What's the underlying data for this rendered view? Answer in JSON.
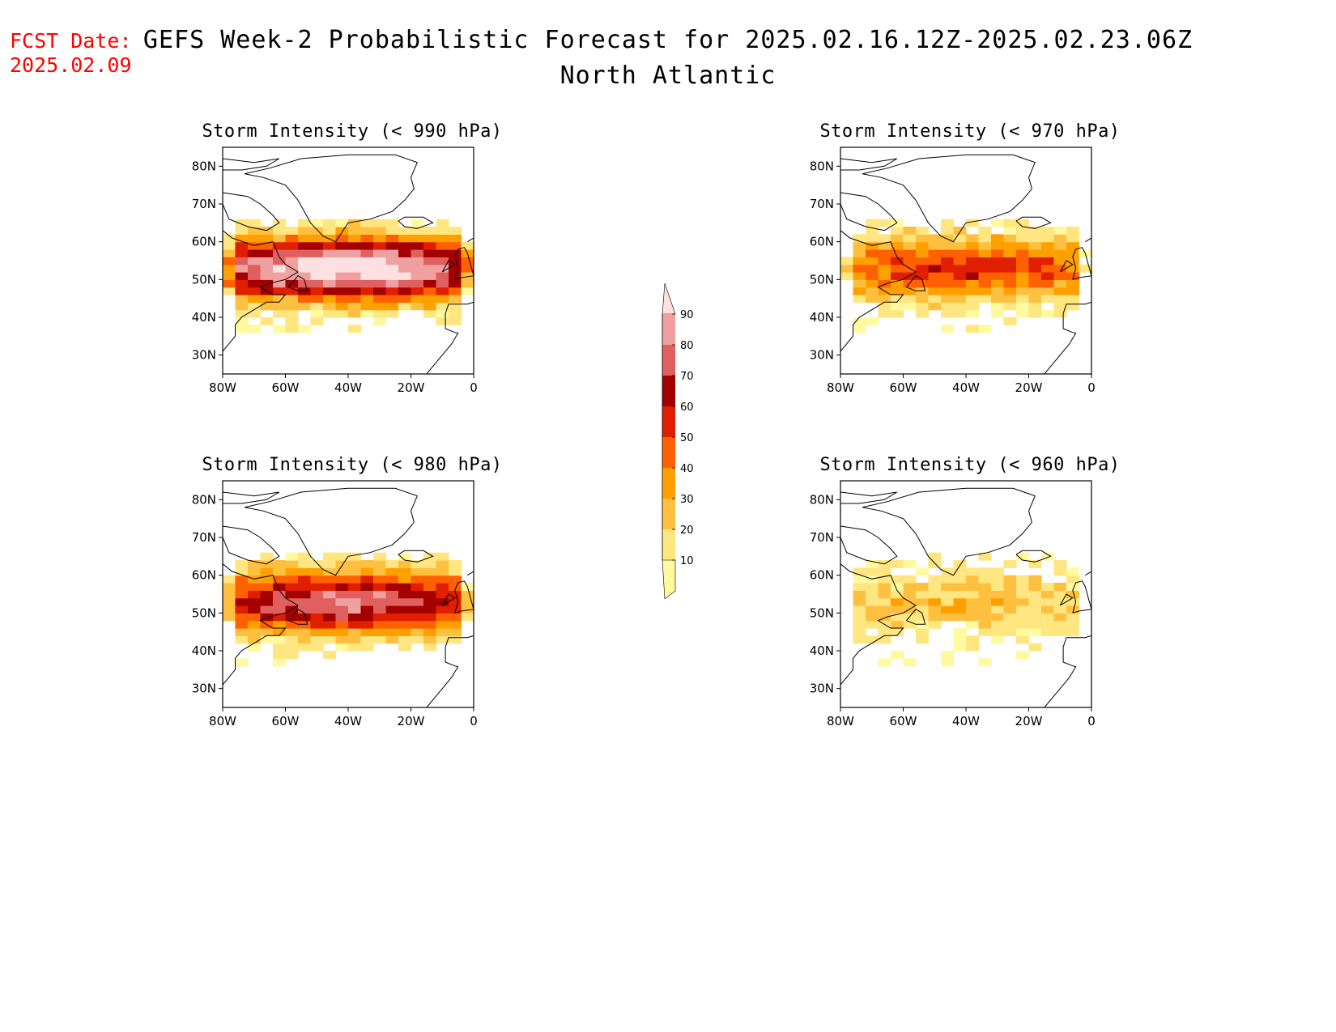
{
  "header": {
    "fcst_label": "FCST Date:",
    "fcst_date": "2025.02.09",
    "title": "GEFS Week-2 Probabilistic Forecast for 2025.02.16.12Z-2025.02.23.06Z",
    "subtitle": "North Atlantic"
  },
  "axes": {
    "lat_ticks": [
      "80N",
      "70N",
      "60N",
      "50N",
      "40N",
      "30N"
    ],
    "lon_ticks": [
      "80W",
      "60W",
      "40W",
      "20W",
      "0"
    ],
    "lat_range": [
      25,
      85
    ],
    "lon_range": [
      -80,
      0
    ]
  },
  "panels": [
    {
      "title": "Storm Intensity (< 990 hPa)",
      "intensity": 1.0
    },
    {
      "title": "Storm Intensity (< 970 hPa)",
      "intensity": 0.55
    },
    {
      "title": "Storm Intensity (< 980 hPa)",
      "intensity": 0.8
    },
    {
      "title": "Storm Intensity (< 960 hPa)",
      "intensity": 0.25
    }
  ],
  "legend": {
    "levels": [
      "10",
      "20",
      "30",
      "40",
      "50",
      "60",
      "70",
      "80",
      "90"
    ],
    "colors": [
      "#fffaa0",
      "#ffe680",
      "#ffc040",
      "#ffa000",
      "#ff6000",
      "#e01e00",
      "#a50000",
      "#e06060",
      "#f0a0a0",
      "#fde0e0"
    ]
  }
}
